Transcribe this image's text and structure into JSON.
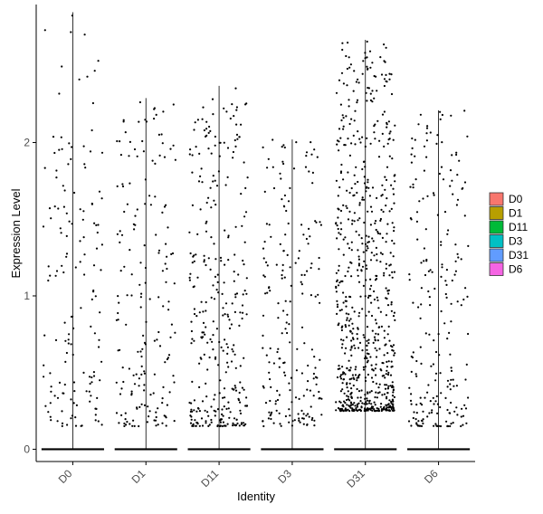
{
  "chart_data": {
    "type": "violin-jitter",
    "title": "",
    "xlabel": "Identity",
    "ylabel": "Expression Level",
    "ylim": [
      -0.08,
      2.9
    ],
    "yticks": [
      0,
      1,
      2
    ],
    "categories": [
      "D0",
      "D1",
      "D11",
      "D3",
      "D31",
      "D6"
    ],
    "series": [
      {
        "name": "D0",
        "color": "#F8766D",
        "max": 2.85,
        "zero_fraction": 0.88
      },
      {
        "name": "D1",
        "color": "#B79F00",
        "max": 2.29,
        "zero_fraction": 0.9
      },
      {
        "name": "D11",
        "color": "#00BA38",
        "max": 2.37,
        "zero_fraction": 0.82
      },
      {
        "name": "D3",
        "color": "#00BFC4",
        "max": 2.02,
        "zero_fraction": 0.88
      },
      {
        "name": "D31",
        "color": "#619CFF",
        "max": 2.67,
        "zero_fraction": 0.65
      },
      {
        "name": "D6",
        "color": "#F564E3",
        "max": 2.21,
        "zero_fraction": 0.88
      }
    ],
    "point_color": "#000000",
    "grid": false,
    "legend_position": "right"
  }
}
